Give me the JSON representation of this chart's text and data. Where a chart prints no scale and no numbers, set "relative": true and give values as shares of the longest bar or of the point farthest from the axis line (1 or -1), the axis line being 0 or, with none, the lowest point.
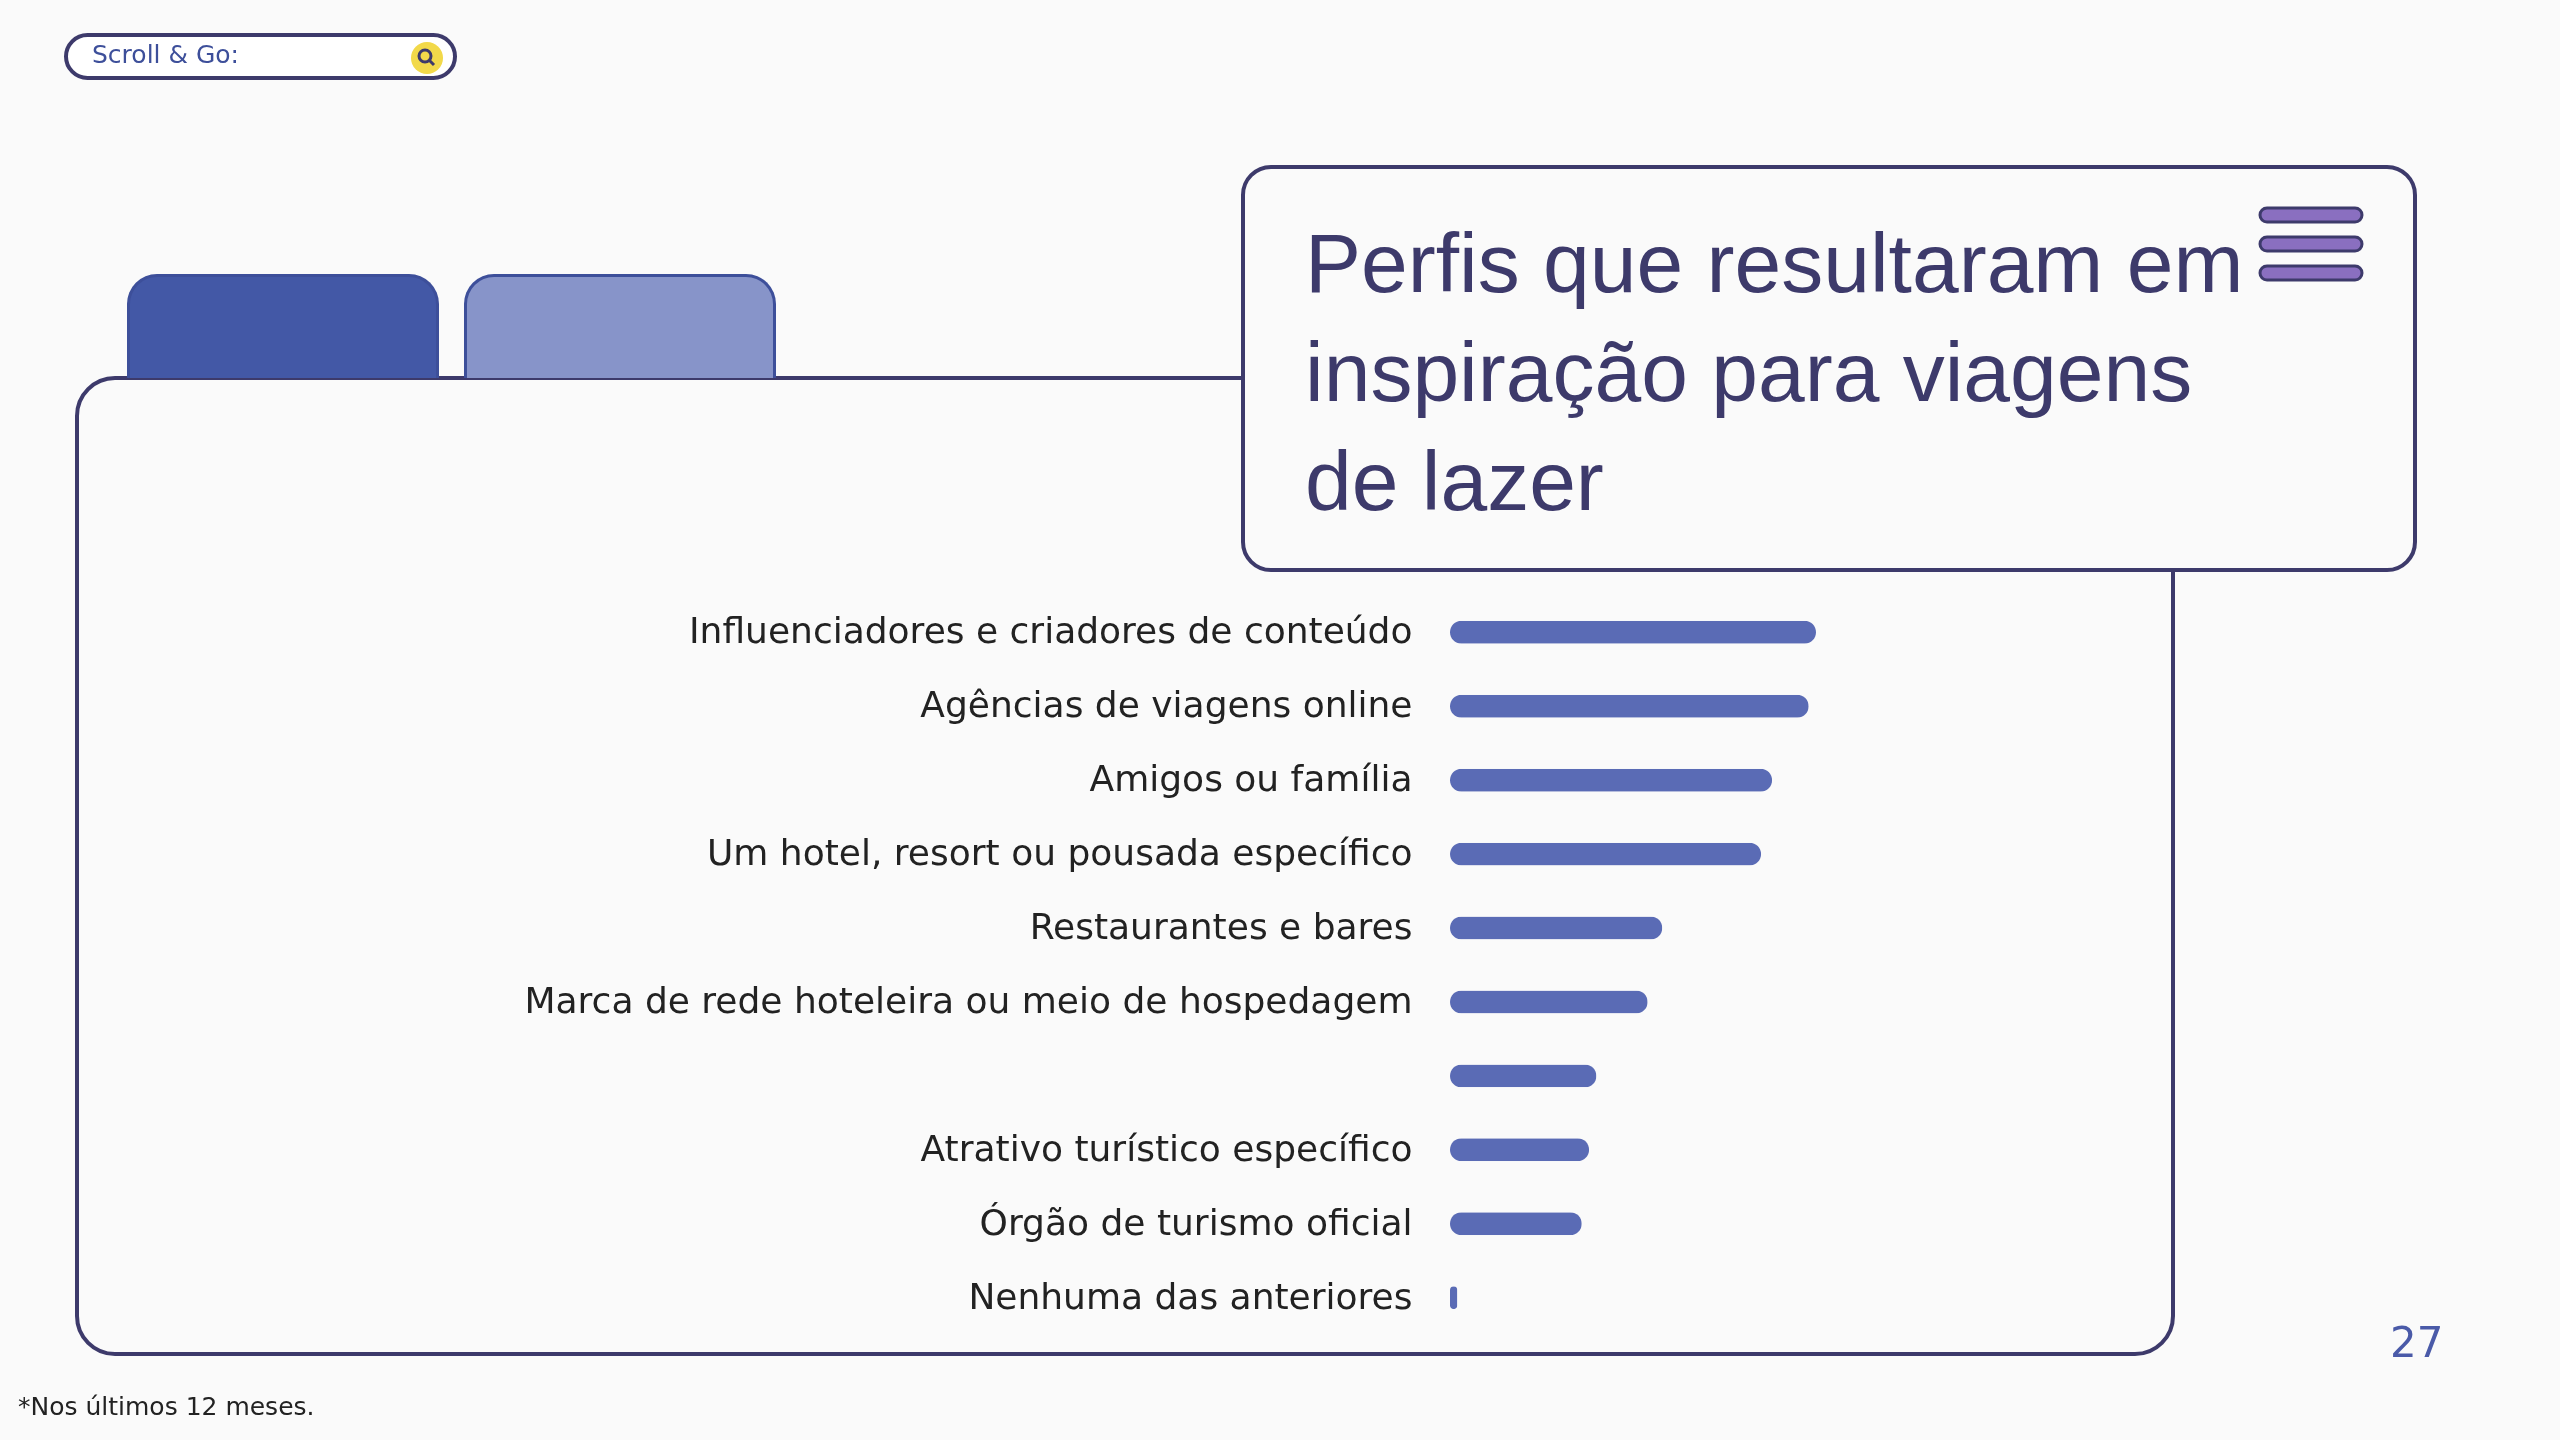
{
  "chart_data": {
    "type": "bar",
    "orientation": "horizontal",
    "relative": true,
    "title": "Perfis que resultaram em inspiração para viagens de lazer",
    "categories": [
      "Influenciadores e criadores de conteúdo",
      "Agências de viagens online",
      "Amigos ou família",
      "Um hotel, resort ou pousada específico",
      "Restaurantes e bares",
      "Marca de rede hoteleira ou meio de hospedagem",
      null,
      "Atrativo turístico específico",
      "Órgão de turismo oficial",
      "Nenhuma das anteriores"
    ],
    "values": [
      1,
      0.98,
      0.88,
      0.85,
      0.58,
      0.54,
      0.4,
      0.38,
      0.36,
      0.02
    ],
    "color": "#5a6bb5",
    "annotations": [
      "Scroll & Go:",
      "27",
      "*Nos últimos 12 meses."
    ]
  }
}
